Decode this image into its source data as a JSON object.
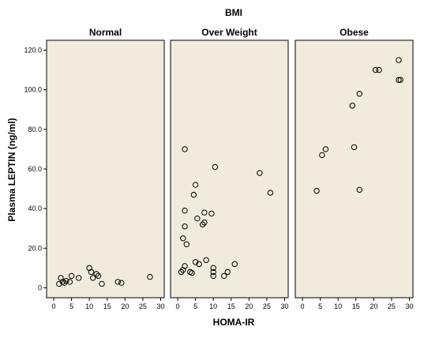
{
  "chart_data": {
    "type": "scatter",
    "title": "BMI",
    "xlabel": "HOMA-IR",
    "ylabel": "Plasma LEPTIN (ng/ml)",
    "xlim": [
      -2,
      31
    ],
    "ylim": [
      -5,
      125
    ],
    "x_ticks": [
      0,
      5,
      10,
      15,
      20,
      25,
      30
    ],
    "y_ticks": [
      0,
      20,
      40,
      60,
      80,
      100,
      120
    ],
    "y_tick_labels": [
      "0",
      "20.0",
      "40.0",
      "60.0",
      "80.0",
      "100.0",
      "120.0"
    ],
    "grid": false,
    "panels": [
      {
        "name": "Normal",
        "points": [
          [
            1.5,
            2
          ],
          [
            2,
            5
          ],
          [
            2.5,
            3
          ],
          [
            3,
            2.5
          ],
          [
            3.5,
            3.5
          ],
          [
            4.5,
            3
          ],
          [
            5,
            6
          ],
          [
            7,
            5
          ],
          [
            10,
            10
          ],
          [
            10.5,
            8
          ],
          [
            11,
            5
          ],
          [
            12,
            7
          ],
          [
            12.5,
            6
          ],
          [
            13.5,
            2
          ],
          [
            18,
            3
          ],
          [
            19,
            2.5
          ],
          [
            27,
            5.5
          ]
        ]
      },
      {
        "name": "Over Weight",
        "points": [
          [
            1,
            8
          ],
          [
            1.5,
            9
          ],
          [
            1.5,
            25
          ],
          [
            2,
            31
          ],
          [
            2,
            39
          ],
          [
            2,
            70
          ],
          [
            2,
            11
          ],
          [
            2.5,
            22
          ],
          [
            3.5,
            8
          ],
          [
            4,
            7.5
          ],
          [
            4.5,
            47
          ],
          [
            5,
            52
          ],
          [
            5,
            13
          ],
          [
            5.5,
            35
          ],
          [
            6,
            12
          ],
          [
            7,
            32
          ],
          [
            7.5,
            33
          ],
          [
            7.5,
            38
          ],
          [
            8,
            14
          ],
          [
            9.5,
            37.5
          ],
          [
            10,
            10
          ],
          [
            10,
            8
          ],
          [
            10,
            6
          ],
          [
            10.5,
            61
          ],
          [
            13,
            6
          ],
          [
            14,
            8
          ],
          [
            16,
            12
          ],
          [
            23,
            58
          ],
          [
            26,
            48
          ]
        ]
      },
      {
        "name": "Obese",
        "points": [
          [
            4,
            49
          ],
          [
            5.5,
            67
          ],
          [
            6.5,
            70
          ],
          [
            14,
            92
          ],
          [
            14.5,
            71
          ],
          [
            16,
            49.5
          ],
          [
            16,
            98
          ],
          [
            20.5,
            110
          ],
          [
            21.5,
            110
          ],
          [
            27,
            115
          ],
          [
            27,
            105
          ],
          [
            27.5,
            105
          ]
        ]
      }
    ]
  }
}
